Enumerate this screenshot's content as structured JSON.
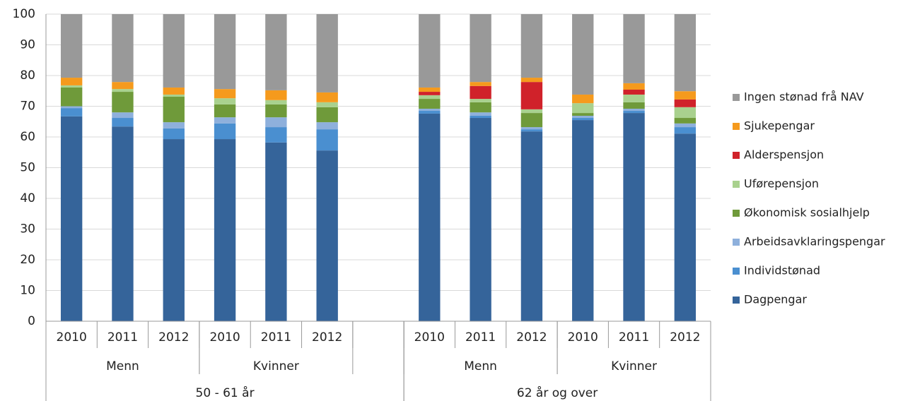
{
  "chart_data": {
    "type": "stacked_bar",
    "categories": [
      "2010",
      "2011",
      "2012",
      "2010",
      "2011",
      "2012",
      null,
      "2010",
      "2011",
      "2012",
      "2010",
      "2011",
      "2012"
    ],
    "sex_groups": [
      "Menn",
      "Kvinner",
      "Menn",
      "Kvinner"
    ],
    "age_groups": [
      "50 - 61 år",
      "62 år og over"
    ],
    "ylim": [
      0,
      100
    ],
    "yticks": [
      0,
      10,
      20,
      30,
      40,
      50,
      60,
      70,
      80,
      90,
      100
    ],
    "grid": true,
    "legend": "right",
    "series": [
      {
        "name": "Dagpengar",
        "color": "#35649a",
        "values": [
          66.7,
          63.4,
          59.3,
          59.3,
          58.2,
          55.6,
          null,
          67.6,
          66.2,
          61.8,
          65.5,
          67.8,
          61.1
        ]
      },
      {
        "name": "Individstønad",
        "color": "#4a8fd0",
        "values": [
          2.7,
          2.8,
          3.5,
          5.1,
          5.0,
          6.9,
          null,
          0.9,
          0.7,
          0.7,
          0.7,
          0.7,
          2.1
        ]
      },
      {
        "name": "Arbeidsavklaringspengar",
        "color": "#8eb0dc",
        "values": [
          0.6,
          1.8,
          2.0,
          2.0,
          3.2,
          2.3,
          null,
          0.7,
          1.1,
          0.7,
          0.7,
          0.7,
          1.2
        ]
      },
      {
        "name": "Økonomisk sosialhjelp",
        "color": "#6f9a3a",
        "values": [
          6.1,
          6.7,
          8.3,
          4.2,
          4.2,
          4.9,
          null,
          3.2,
          3.3,
          4.6,
          0.9,
          2.1,
          1.8
        ]
      },
      {
        "name": "Uførepensjon",
        "color": "#a9d18e",
        "values": [
          0.7,
          0.9,
          0.7,
          2.0,
          1.4,
          1.6,
          null,
          1.2,
          1.1,
          1.2,
          3.2,
          2.5,
          3.5
        ]
      },
      {
        "name": "Alderspensjon",
        "color": "#d0222a",
        "values": [
          0,
          0,
          0,
          0,
          0,
          0,
          null,
          1.1,
          4.2,
          8.9,
          0,
          1.6,
          2.5
        ]
      },
      {
        "name": "Sjukepengar",
        "color": "#f59a1d",
        "values": [
          2.5,
          2.3,
          2.3,
          3.0,
          3.2,
          3.2,
          null,
          1.4,
          1.3,
          1.4,
          2.8,
          2.1,
          2.7
        ]
      },
      {
        "name": "Ingen stønad frå NAV",
        "color": "#999999",
        "values": [
          20.7,
          22.1,
          23.9,
          24.4,
          24.8,
          25.5,
          null,
          23.9,
          22.1,
          20.7,
          26.2,
          22.5,
          25.1
        ]
      }
    ]
  }
}
